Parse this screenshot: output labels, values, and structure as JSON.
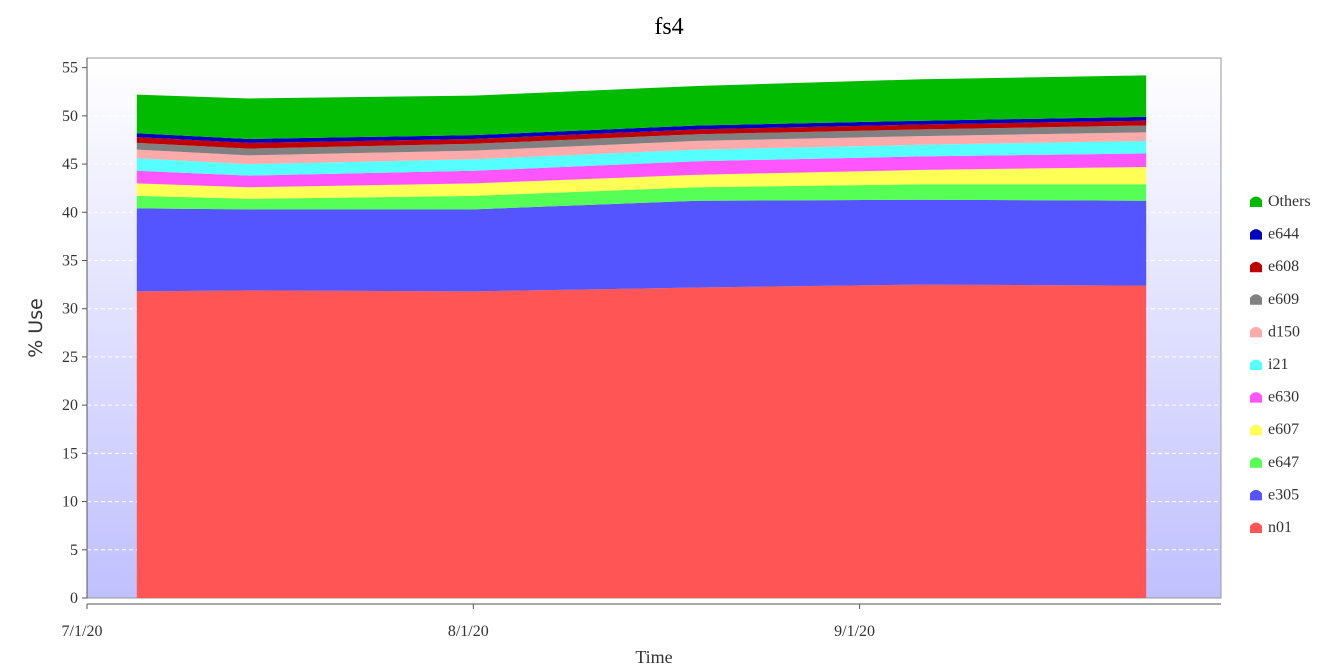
{
  "chart_data": {
    "type": "area",
    "stacked": true,
    "title": "fs4",
    "xlabel": "Time",
    "ylabel": "% Use",
    "ylim": [
      0,
      56
    ],
    "yticks": [
      0,
      5,
      10,
      15,
      20,
      25,
      30,
      35,
      40,
      45,
      50,
      55
    ],
    "xlim": [
      "2020-07-01",
      "2020-09-30"
    ],
    "xticks": [
      {
        "date": "2020-07-01",
        "label": "7/1/20"
      },
      {
        "date": "2020-08-01",
        "label": "8/1/20"
      },
      {
        "date": "2020-09-01",
        "label": "9/1/20"
      }
    ],
    "grid": true,
    "legend_position": "right",
    "x": [
      "2020-07-05",
      "2020-07-14",
      "2020-08-01",
      "2020-08-19",
      "2020-09-06",
      "2020-09-24"
    ],
    "series": [
      {
        "name": "n01",
        "color": "#ff5555",
        "values": [
          31.8,
          31.9,
          31.8,
          32.2,
          32.5,
          32.4
        ]
      },
      {
        "name": "e305",
        "color": "#5555ff",
        "values": [
          8.6,
          8.4,
          8.5,
          9.0,
          8.8,
          8.8
        ]
      },
      {
        "name": "e647",
        "color": "#55ff55",
        "values": [
          1.3,
          1.1,
          1.4,
          1.4,
          1.6,
          1.7
        ]
      },
      {
        "name": "e607",
        "color": "#ffff55",
        "values": [
          1.3,
          1.2,
          1.3,
          1.3,
          1.5,
          1.8
        ]
      },
      {
        "name": "e630",
        "color": "#ff55ff",
        "values": [
          1.3,
          1.2,
          1.3,
          1.4,
          1.4,
          1.4
        ]
      },
      {
        "name": "i21",
        "color": "#55ffff",
        "values": [
          1.3,
          1.2,
          1.2,
          1.2,
          1.2,
          1.3
        ]
      },
      {
        "name": "d150",
        "color": "#ffaaaa",
        "values": [
          0.9,
          0.9,
          0.9,
          0.9,
          0.9,
          0.9
        ]
      },
      {
        "name": "e609",
        "color": "#808080",
        "values": [
          0.7,
          0.7,
          0.7,
          0.7,
          0.7,
          0.7
        ]
      },
      {
        "name": "e608",
        "color": "#c00000",
        "values": [
          0.6,
          0.6,
          0.5,
          0.5,
          0.5,
          0.5
        ]
      },
      {
        "name": "e644",
        "color": "#0000c0",
        "values": [
          0.4,
          0.4,
          0.4,
          0.4,
          0.4,
          0.4
        ]
      },
      {
        "name": "Others",
        "color": "#00bb00",
        "values": [
          4.0,
          4.2,
          4.1,
          4.1,
          4.3,
          4.3
        ]
      }
    ]
  }
}
